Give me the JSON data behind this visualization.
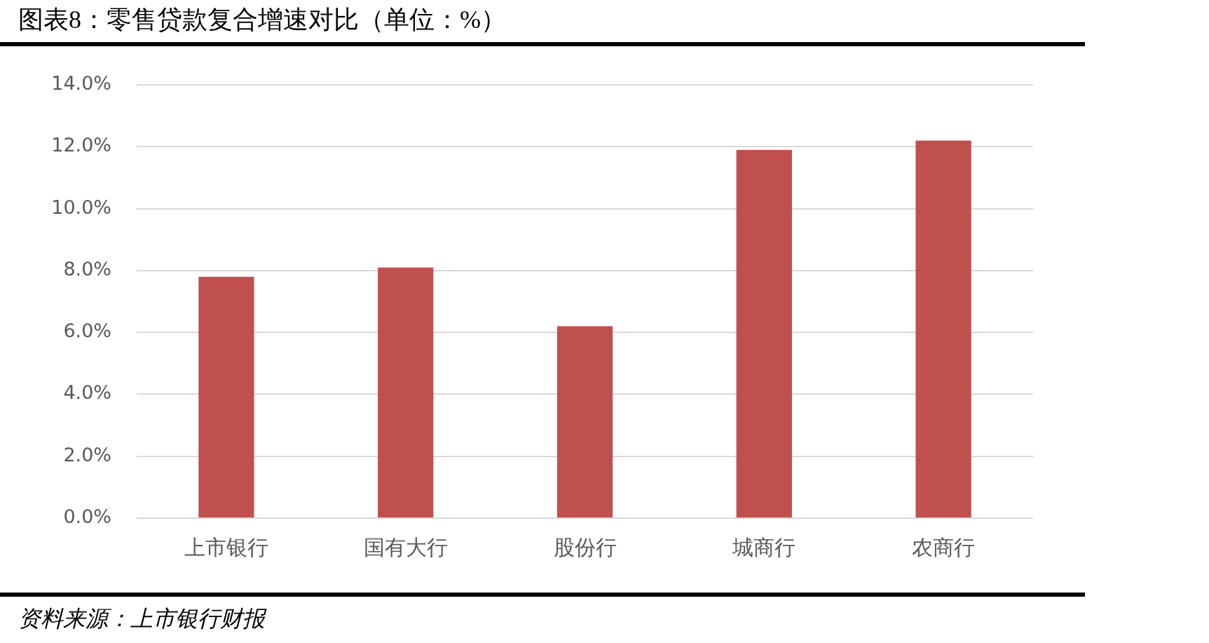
{
  "chart_data": {
    "type": "bar",
    "title": "图表8：零售贷款复合增速对比（单位：%）",
    "categories": [
      "上市银行",
      "国有大行",
      "股份行",
      "城商行",
      "农商行"
    ],
    "values": [
      7.8,
      8.1,
      6.2,
      11.9,
      12.2
    ],
    "color": "#c0504d",
    "ylim": [
      0,
      14
    ],
    "yticks": [
      {
        "value": 0,
        "label": "0.0%"
      },
      {
        "value": 2,
        "label": "2.0%"
      },
      {
        "value": 4,
        "label": "4.0%"
      },
      {
        "value": 6,
        "label": "6.0%"
      },
      {
        "value": 8,
        "label": "8.0%"
      },
      {
        "value": 10,
        "label": "10.0%"
      },
      {
        "value": 12,
        "label": "12.0%"
      },
      {
        "value": 14,
        "label": "14.0%"
      }
    ],
    "grid": "y",
    "annotations": [
      "资料来源：上市银行财报"
    ]
  }
}
